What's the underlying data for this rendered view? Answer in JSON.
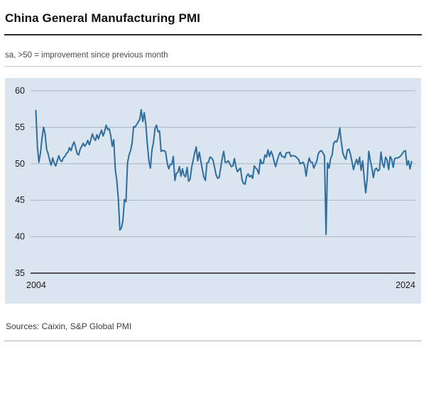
{
  "header": {
    "title": "China General Manufacturing PMI"
  },
  "subtitle": "sa, >50 = improvement since previous month",
  "footer": {
    "sources": "Sources: Caixin, S&P Global PMI"
  },
  "chart_data": {
    "type": "line",
    "title": "China General Manufacturing PMI",
    "subtitle": "sa, >50 = improvement since previous month",
    "ylabel": "",
    "xlabel": "",
    "ylim": [
      35,
      60
    ],
    "xlim": [
      2004,
      2025
    ],
    "yticks": [
      60,
      55,
      50,
      45,
      40,
      35
    ],
    "xticks": [
      {
        "label": "2004",
        "pos": "left"
      },
      {
        "label": "2024",
        "pos": "right"
      }
    ],
    "grid": "horizontal",
    "legend": "none",
    "colors": {
      "line": "#2e6d9d",
      "plot_bg": "#dbe5f0",
      "grid": "#a8b6c6",
      "axis": "#222222",
      "text": "#1a1a1a"
    },
    "series": [
      {
        "name": "China General Manufacturing PMI (sa)",
        "frequency": "monthly",
        "start_year": 2004,
        "start_month": 4,
        "values": [
          57.3,
          52.3,
          50.2,
          51.5,
          53.4,
          55.0,
          54.2,
          52.0,
          51.4,
          50.5,
          49.8,
          50.8,
          50.1,
          49.7,
          50.4,
          51.1,
          50.5,
          50.3,
          50.8,
          51.0,
          51.4,
          51.6,
          52.2,
          51.8,
          52.5,
          53.0,
          52.3,
          51.4,
          51.2,
          52.0,
          52.4,
          52.8,
          52.4,
          52.7,
          53.2,
          52.6,
          53.3,
          54.1,
          53.5,
          53.2,
          54.0,
          53.4,
          54.1,
          54.6,
          53.8,
          54.4,
          55.3,
          54.7,
          54.8,
          53.9,
          52.4,
          53.3,
          49.2,
          47.7,
          45.2,
          40.9,
          41.2,
          42.2,
          45.1,
          44.8,
          50.1,
          51.2,
          51.8,
          52.8,
          55.1,
          55.0,
          55.4,
          55.7,
          56.1,
          57.4,
          55.8,
          57.0,
          55.4,
          52.7,
          50.4,
          49.4,
          51.9,
          52.9,
          54.8,
          55.3,
          54.4,
          54.5,
          51.7,
          51.8,
          51.8,
          51.6,
          50.1,
          49.3,
          49.9,
          49.9,
          51.0,
          47.7,
          48.7,
          48.8,
          49.6,
          48.3,
          49.3,
          48.4,
          48.2,
          49.5,
          47.6,
          47.9,
          49.5,
          50.5,
          51.5,
          52.3,
          50.4,
          51.6,
          50.4,
          49.2,
          48.2,
          47.7,
          50.1,
          50.2,
          50.9,
          50.8,
          50.5,
          49.5,
          48.5,
          48.0,
          48.1,
          49.4,
          50.7,
          51.7,
          50.2,
          50.2,
          50.4,
          50.0,
          49.6,
          49.7,
          50.7,
          49.6,
          48.9,
          49.2,
          49.4,
          47.8,
          47.3,
          47.2,
          48.3,
          48.6,
          48.2,
          48.4,
          48.0,
          49.7,
          49.4,
          49.2,
          48.6,
          50.6,
          50.0,
          50.1,
          51.2,
          50.9,
          51.9,
          51.0,
          51.7,
          51.2,
          50.3,
          49.6,
          50.4,
          51.1,
          51.6,
          51.0,
          51.0,
          50.8,
          51.5,
          51.5,
          51.6,
          51.0,
          51.1,
          51.1,
          51.0,
          50.8,
          50.6,
          50.0,
          50.1,
          50.2,
          49.7,
          48.3,
          49.9,
          50.8,
          50.2,
          50.2,
          49.4,
          49.9,
          50.4,
          51.4,
          51.7,
          51.8,
          51.5,
          51.1,
          40.3,
          50.1,
          49.4,
          50.7,
          51.2,
          52.8,
          53.1,
          53.0,
          53.6,
          54.9,
          53.0,
          51.5,
          50.9,
          50.6,
          51.9,
          52.0,
          51.3,
          50.3,
          49.2,
          50.0,
          50.6,
          49.9,
          50.9,
          49.1,
          50.4,
          48.1,
          46.0,
          48.1,
          51.7,
          50.4,
          49.5,
          48.1,
          49.2,
          49.4,
          49.0,
          49.2,
          51.6,
          50.0,
          49.5,
          50.9,
          50.5,
          49.2,
          51.0,
          50.6,
          49.5,
          50.7,
          50.8,
          50.8,
          50.9,
          51.1,
          51.4,
          51.7,
          51.8,
          49.8,
          50.4,
          49.3,
          50.3
        ]
      }
    ]
  }
}
